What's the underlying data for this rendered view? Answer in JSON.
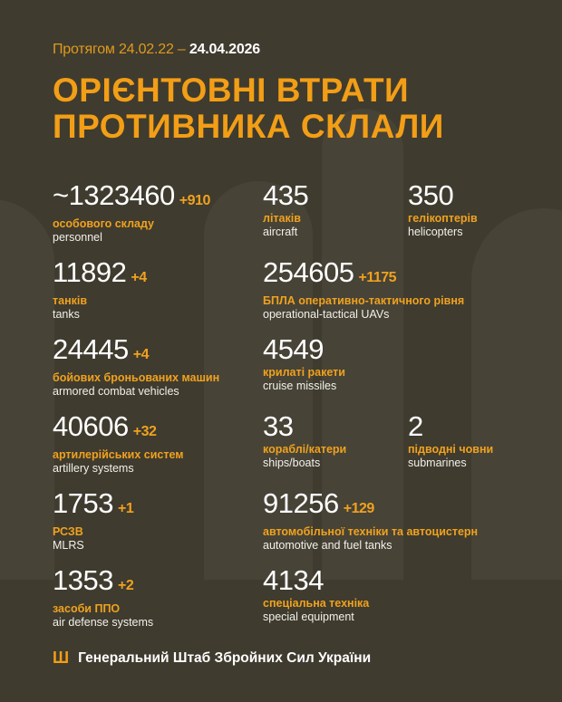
{
  "header": {
    "period_prefix": "Протягом 24.02.22 –",
    "period_end": "24.04.2026",
    "title_line1": "ОРІЄНТОВНІ ВТРАТИ",
    "title_line2": "ПРОТИВНИКА СКЛАЛИ"
  },
  "accent": "#f29e16",
  "rows": [
    [
      {
        "value": "~1323460",
        "delta": "+910",
        "ua": "особового складу",
        "en": "personnel"
      },
      {
        "value": "435",
        "delta": "",
        "ua": "літаків",
        "en": "aircraft"
      },
      {
        "value": "350",
        "delta": "",
        "ua": "гелікоптерів",
        "en": "helicopters"
      }
    ],
    [
      {
        "value": "11892",
        "delta": "+4",
        "ua": "танків",
        "en": "tanks"
      },
      {
        "value": "254605",
        "delta": "+1175",
        "ua": "БПЛА оперативно-тактичного рівня",
        "en": "operational-tactical UAVs"
      },
      null
    ],
    [
      {
        "value": "24445",
        "delta": "+4",
        "ua": "бойових броньованих машин",
        "en": "armored combat vehicles"
      },
      {
        "value": "4549",
        "delta": "",
        "ua": "крилаті ракети",
        "en": "cruise missiles"
      },
      null
    ],
    [
      {
        "value": "40606",
        "delta": "+32",
        "ua": "артилерійських систем",
        "en": "artillery systems"
      },
      {
        "value": "33",
        "delta": "",
        "ua": "кораблі/катери",
        "en": "ships/boats"
      },
      {
        "value": "2",
        "delta": "",
        "ua": "підводні човни",
        "en": "submarines"
      }
    ],
    [
      {
        "value": "1753",
        "delta": "+1",
        "ua": "РСЗВ",
        "en": "MLRS"
      },
      {
        "value": "91256",
        "delta": "+129",
        "ua": "автомобільної техніки та автоцистерн",
        "en": "automotive and fuel tanks"
      },
      null
    ],
    [
      {
        "value": "1353",
        "delta": "+2",
        "ua": "засоби ППО",
        "en": "air defense systems"
      },
      {
        "value": "4134",
        "delta": "",
        "ua": "спеціальна техніка",
        "en": "special equipment"
      },
      null
    ]
  ],
  "footer": {
    "icon": "trident-icon",
    "text": "Генеральний Штаб Збройних Сил України"
  }
}
